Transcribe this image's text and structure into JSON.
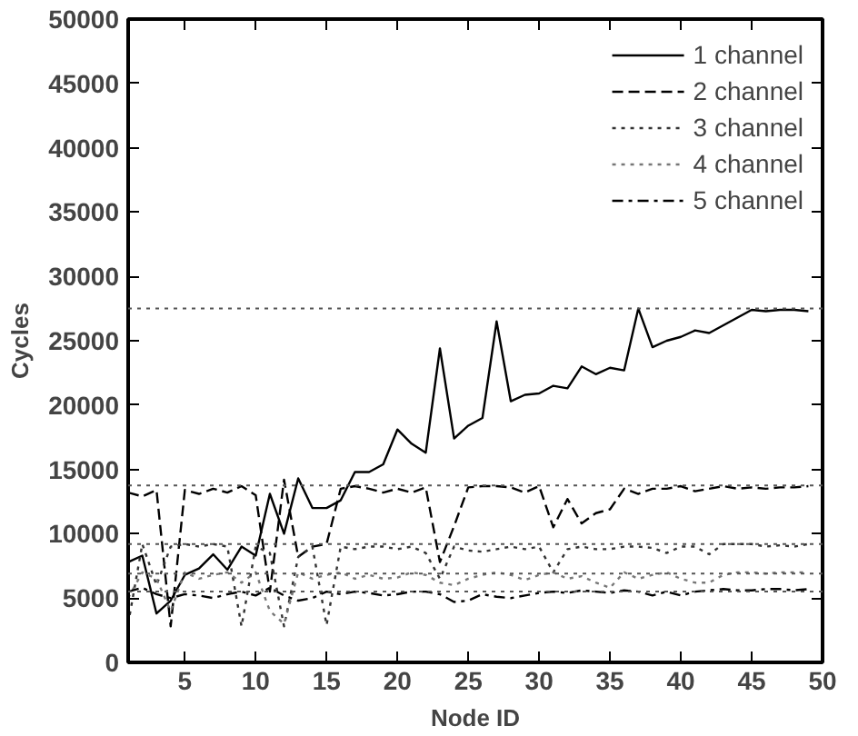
{
  "chart_data": {
    "type": "line",
    "xlabel": "Node ID",
    "ylabel": "Cycles",
    "x": [
      1,
      2,
      3,
      4,
      5,
      6,
      7,
      8,
      9,
      10,
      11,
      12,
      13,
      14,
      15,
      16,
      17,
      18,
      19,
      20,
      21,
      22,
      23,
      24,
      25,
      26,
      27,
      28,
      29,
      30,
      31,
      32,
      33,
      34,
      35,
      36,
      37,
      38,
      39,
      40,
      41,
      42,
      43,
      44,
      45,
      46,
      47,
      48,
      49
    ],
    "xlim": [
      1,
      50
    ],
    "xticks": [
      5,
      10,
      15,
      20,
      25,
      30,
      35,
      40,
      45,
      50
    ],
    "ylim": [
      0,
      50000
    ],
    "yticks": [
      0,
      5000,
      10000,
      15000,
      20000,
      25000,
      30000,
      35000,
      40000,
      45000,
      50000
    ],
    "legend": "top right",
    "series": [
      {
        "name": "1 channel",
        "color": "#000000",
        "line_style": "solid",
        "values": [
          7800,
          8300,
          3800,
          4800,
          6800,
          7300,
          8400,
          7200,
          9000,
          8300,
          13100,
          10000,
          14300,
          12000,
          12000,
          12600,
          14800,
          14800,
          15400,
          18100,
          17000,
          16300,
          24400,
          17400,
          18400,
          19000,
          26500,
          20300,
          20800,
          20900,
          21500,
          21300,
          23000,
          22400,
          22900,
          22700,
          27500,
          24500,
          25000,
          25300,
          25800,
          25600,
          26200,
          26800,
          27400,
          27300,
          27400,
          27400,
          27300
        ]
      },
      {
        "name": "2 channel",
        "color": "#000000",
        "line_style": "dashed",
        "values": [
          13200,
          12900,
          13400,
          2800,
          13400,
          13100,
          13500,
          13200,
          13700,
          13000,
          5500,
          14200,
          8200,
          9000,
          9200,
          13500,
          13700,
          13500,
          13200,
          13500,
          13200,
          13600,
          7800,
          10600,
          13600,
          13700,
          13700,
          13600,
          13200,
          13700,
          10500,
          12700,
          10800,
          11600,
          11900,
          13500,
          13100,
          13500,
          13500,
          13700,
          13300,
          13500,
          13700,
          13500,
          13600,
          13500,
          13600,
          13600,
          13700
        ]
      },
      {
        "name": "3 channel",
        "color": "#333333",
        "line_style": "dotted",
        "values": [
          3000,
          9200,
          6000,
          9000,
          9200,
          9000,
          9200,
          9000,
          2800,
          9000,
          8500,
          2800,
          8200,
          9000,
          2900,
          9000,
          8800,
          9000,
          9000,
          8800,
          9000,
          8500,
          6500,
          9000,
          8700,
          8600,
          8800,
          9000,
          8800,
          9000,
          7000,
          8800,
          9000,
          8800,
          8800,
          9000,
          9000,
          8900,
          8500,
          9000,
          9000,
          8400,
          9200,
          9200,
          9200,
          9000,
          9100,
          9000,
          9200
        ]
      },
      {
        "name": "4 channel",
        "color": "#777777",
        "line_style": "dotted",
        "values": [
          5000,
          7000,
          6500,
          4000,
          7000,
          6500,
          6800,
          7000,
          6200,
          7000,
          4000,
          3000,
          7000,
          6500,
          6800,
          7000,
          6500,
          6800,
          6500,
          6600,
          7000,
          6800,
          6200,
          6000,
          6500,
          6800,
          7000,
          6800,
          6400,
          6800,
          7000,
          6500,
          6700,
          6200,
          5800,
          7000,
          6500,
          6800,
          7000,
          6500,
          6200,
          6200,
          6800,
          7000,
          7000,
          6900,
          7000,
          7000,
          7000
        ]
      },
      {
        "name": "5 channel",
        "color": "#000000",
        "line_style": "dashdot",
        "values": [
          5500,
          5800,
          5300,
          5000,
          5300,
          5200,
          5000,
          5300,
          5500,
          5200,
          5800,
          5200,
          4800,
          5000,
          5500,
          5300,
          5500,
          5400,
          5200,
          5300,
          5500,
          5500,
          5300,
          4700,
          4800,
          5300,
          5100,
          5000,
          5200,
          5400,
          5500,
          5400,
          5600,
          5500,
          5400,
          5600,
          5500,
          5200,
          5500,
          5200,
          5500,
          5600,
          5700,
          5600,
          5600,
          5700,
          5700,
          5600,
          5700
        ]
      }
    ],
    "ref_lines": [
      {
        "axis": "y",
        "value": 27500,
        "color": "#555555",
        "line_style": "dotted"
      },
      {
        "axis": "y",
        "value": 13750,
        "color": "#555555",
        "line_style": "dotted"
      },
      {
        "axis": "y",
        "value": 9200,
        "color": "#555555",
        "line_style": "dotted"
      },
      {
        "axis": "y",
        "value": 6900,
        "color": "#555555",
        "line_style": "dotted"
      },
      {
        "axis": "y",
        "value": 5500,
        "color": "#555555",
        "line_style": "dotted"
      }
    ]
  }
}
